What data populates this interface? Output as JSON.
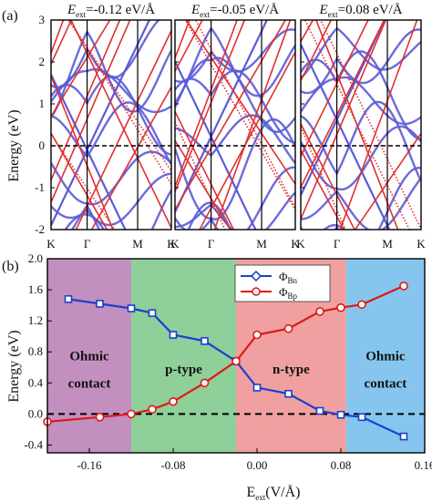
{
  "panel_a": {
    "letter": "(a)",
    "ylabel": "Energy (eV)",
    "ylim": [
      -2,
      3
    ],
    "yticks": [
      "-2",
      "-1",
      "0",
      "1",
      "2",
      "3"
    ],
    "kpoints": [
      "K",
      "Γ",
      "M",
      "K"
    ],
    "colors": {
      "series_1": "#5b5bd6",
      "series_2": "#e03030"
    },
    "subpanels": [
      {
        "title_main": "E",
        "title_sub": "ext",
        "title_rest": "=-0.12 eV/Å"
      },
      {
        "title_main": "E",
        "title_sub": "ext",
        "title_rest": "=-0.05 eV/Å"
      },
      {
        "title_main": "E",
        "title_sub": "ext",
        "title_rest": "=0.08 eV/Å"
      }
    ]
  },
  "chart_data": {
    "type": "line",
    "panel_letter": "(b)",
    "ylabel": "Energy (eV)",
    "xlabel_main": "E",
    "xlabel_sub": "ext",
    "xlabel_rest": "(V/Å)",
    "xlim": [
      -0.2,
      0.16
    ],
    "ylim": [
      -0.5,
      2.0
    ],
    "xticks": [
      -0.16,
      -0.08,
      0.0,
      0.08,
      0.16
    ],
    "xtick_labels": [
      "-0.16",
      "-0.08",
      "0.00",
      "0.08",
      "0.16"
    ],
    "yticks": [
      -0.4,
      0.0,
      0.4,
      0.8,
      1.2,
      1.6,
      2.0
    ],
    "ytick_labels": [
      "-0.4",
      "0.0",
      "0.4",
      "0.8",
      "1.2",
      "1.6",
      "2.0"
    ],
    "regions": [
      {
        "from": -0.2,
        "to": -0.12,
        "color": "#c38fbf",
        "label_lines": [
          "Ohmic",
          "contact"
        ],
        "label_y": [
          0.75,
          0.4
        ]
      },
      {
        "from": -0.12,
        "to": -0.02,
        "color": "#8fcf99",
        "label_lines": [
          "p-type"
        ],
        "label_y": [
          0.58
        ]
      },
      {
        "from": -0.02,
        "to": 0.085,
        "color": "#f0a0a0",
        "label_lines": [
          "n-type"
        ],
        "label_y": [
          0.58
        ]
      },
      {
        "from": 0.085,
        "to": 0.16,
        "color": "#86c6ee",
        "label_lines": [
          "Ohmic",
          "contact"
        ],
        "label_y": [
          0.75,
          0.4
        ]
      }
    ],
    "zero_line": 0.0,
    "legend_position": "top-center",
    "series": [
      {
        "name": "Φ",
        "name_sub": "Bn",
        "color": "#1a3fd0",
        "marker": "square",
        "x": [
          -0.18,
          -0.15,
          -0.12,
          -0.1,
          -0.08,
          -0.05,
          -0.02,
          0.0,
          0.03,
          0.06,
          0.08,
          0.1,
          0.14
        ],
        "y": [
          1.48,
          1.42,
          1.36,
          1.3,
          1.02,
          0.94,
          0.68,
          0.34,
          0.26,
          0.04,
          -0.01,
          -0.04,
          -0.29
        ]
      },
      {
        "name": "Φ",
        "name_sub": "Bp",
        "color": "#e01818",
        "marker": "circle",
        "x": [
          -0.2,
          -0.15,
          -0.12,
          -0.1,
          -0.08,
          -0.05,
          -0.02,
          0.0,
          0.03,
          0.06,
          0.08,
          0.1,
          0.14
        ],
        "y": [
          -0.1,
          -0.04,
          0.0,
          0.06,
          0.16,
          0.4,
          0.68,
          1.02,
          1.1,
          1.32,
          1.37,
          1.41,
          1.65
        ]
      }
    ]
  }
}
